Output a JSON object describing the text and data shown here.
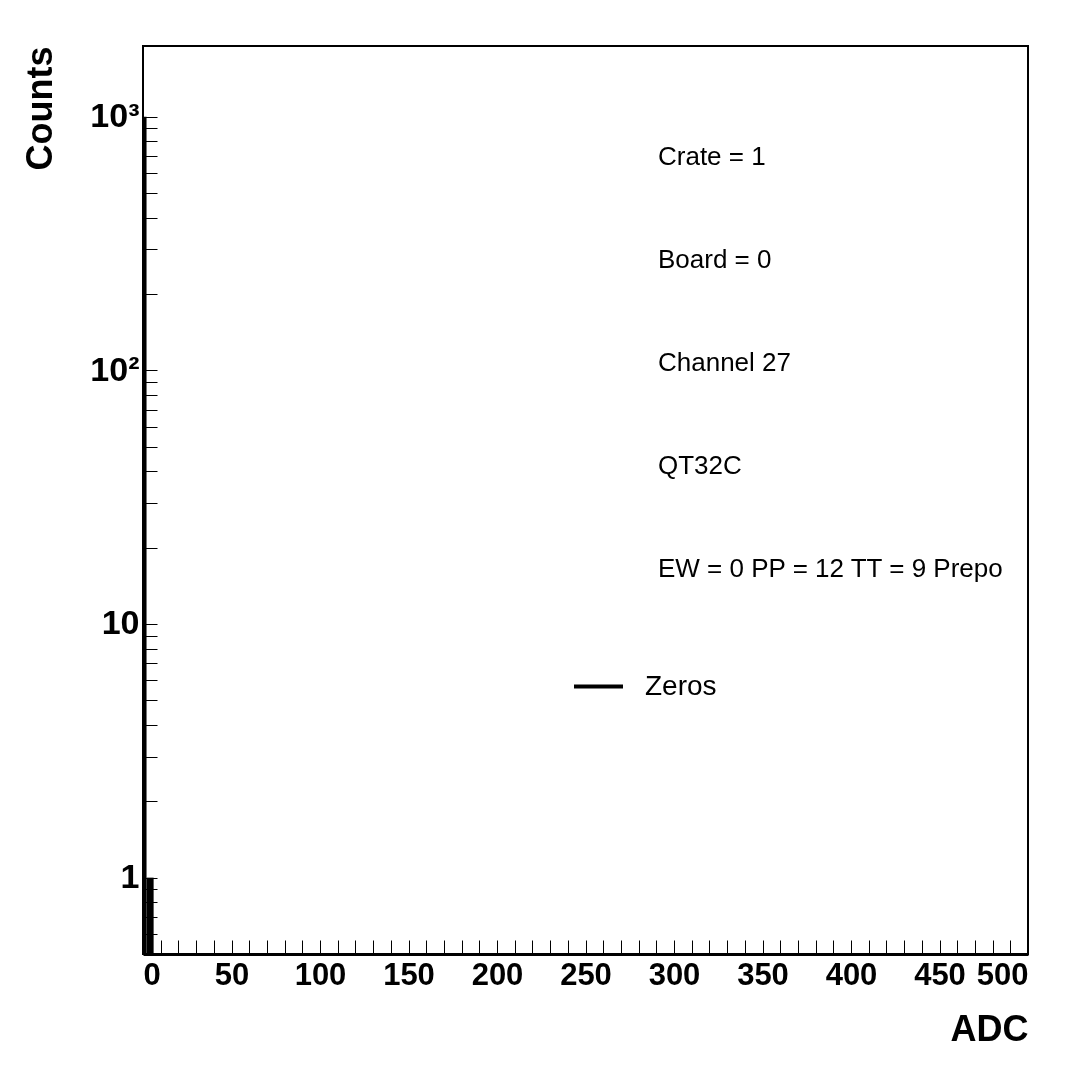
{
  "chart_data": {
    "type": "histogram",
    "xlabel": "ADC",
    "ylabel": "Counts",
    "bins": [
      0,
      2,
      6
    ],
    "series": [
      {
        "name": "Zeros",
        "color": "#000000",
        "values": [
          1000,
          1
        ]
      }
    ],
    "log": "y",
    "xlim": [
      0,
      500
    ],
    "ylim": [
      0.5,
      1900
    ],
    "xticks": [
      0,
      {
        "value": 10,
        "label": null
      },
      {
        "value": 20,
        "label": null
      },
      {
        "value": 30,
        "label": null
      },
      {
        "value": 40,
        "label": null
      },
      50,
      {
        "value": 60,
        "label": null
      },
      {
        "value": 70,
        "label": null
      },
      {
        "value": 80,
        "label": null
      },
      {
        "value": 90,
        "label": null
      },
      100,
      {
        "value": 110,
        "label": null
      },
      {
        "value": 120,
        "label": null
      },
      {
        "value": 130,
        "label": null
      },
      {
        "value": 140,
        "label": null
      },
      150,
      {
        "value": 160,
        "label": null
      },
      {
        "value": 170,
        "label": null
      },
      {
        "value": 180,
        "label": null
      },
      {
        "value": 190,
        "label": null
      },
      200,
      {
        "value": 210,
        "label": null
      },
      {
        "value": 220,
        "label": null
      },
      {
        "value": 230,
        "label": null
      },
      {
        "value": 240,
        "label": null
      },
      250,
      {
        "value": 260,
        "label": null
      },
      {
        "value": 270,
        "label": null
      },
      {
        "value": 280,
        "label": null
      },
      {
        "value": 290,
        "label": null
      },
      300,
      {
        "value": 310,
        "label": null
      },
      {
        "value": 320,
        "label": null
      },
      {
        "value": 330,
        "label": null
      },
      {
        "value": 340,
        "label": null
      },
      350,
      {
        "value": 360,
        "label": null
      },
      {
        "value": 370,
        "label": null
      },
      {
        "value": 380,
        "label": null
      },
      {
        "value": 390,
        "label": null
      },
      400,
      {
        "value": 410,
        "label": null
      },
      {
        "value": 420,
        "label": null
      },
      {
        "value": 430,
        "label": null
      },
      {
        "value": 440,
        "label": null
      },
      450,
      {
        "value": 460,
        "label": null
      },
      {
        "value": 470,
        "label": null
      },
      {
        "value": 480,
        "label": null
      },
      {
        "value": 490,
        "label": null
      },
      500
    ],
    "yticks": [
      {
        "value": 0.6,
        "label": null
      },
      {
        "value": 0.7,
        "label": null
      },
      {
        "value": 0.8,
        "label": null
      },
      {
        "value": 0.9,
        "label": null
      },
      1,
      {
        "value": 2,
        "label": null
      },
      {
        "value": 3,
        "label": null
      },
      {
        "value": 4,
        "label": null
      },
      {
        "value": 5,
        "label": null
      },
      {
        "value": 6,
        "label": null
      },
      {
        "value": 7,
        "label": null
      },
      {
        "value": 8,
        "label": null
      },
      {
        "value": 9,
        "label": null
      },
      10,
      {
        "value": 20,
        "label": null
      },
      {
        "value": 30,
        "label": null
      },
      {
        "value": 40,
        "label": null
      },
      {
        "value": 50,
        "label": null
      },
      {
        "value": 60,
        "label": null
      },
      {
        "value": 70,
        "label": null
      },
      {
        "value": 80,
        "label": null
      },
      {
        "value": 90,
        "label": null
      },
      {
        "value": 100,
        "label": "10²"
      },
      {
        "value": 200,
        "label": null
      },
      {
        "value": 300,
        "label": null
      },
      {
        "value": 400,
        "label": null
      },
      {
        "value": 500,
        "label": null
      },
      {
        "value": 600,
        "label": null
      },
      {
        "value": 700,
        "label": null
      },
      {
        "value": 800,
        "label": null
      },
      {
        "value": 900,
        "label": null
      },
      {
        "value": 1000,
        "label": "10³"
      }
    ],
    "annotations": [
      "Crate = 1",
      "Board = 0",
      "Channel 27",
      "QT32C",
      "EW = 0 PP = 12 TT = 9 Prepo"
    ],
    "legend": "bottom right",
    "grid": false
  }
}
